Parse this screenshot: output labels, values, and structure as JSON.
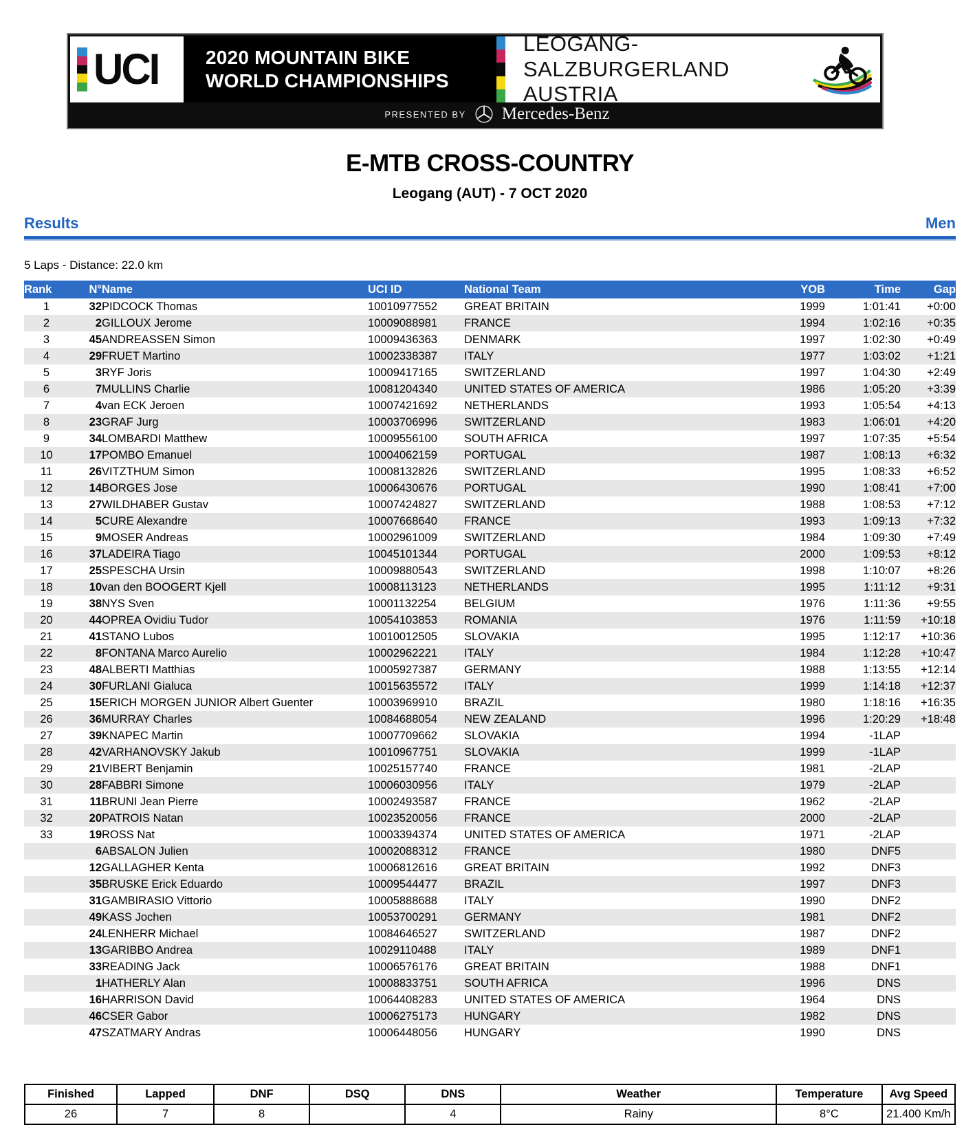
{
  "banner": {
    "uci_logo_text": "UCI",
    "event_line1": "2020 MOUNTAIN BIKE",
    "event_line2": "WORLD CHAMPIONSHIPS",
    "location_line1": "LEOGANG-SALZBURGERLAND",
    "location_line2": "AUSTRIA",
    "presented_by": "PRESENTED BY",
    "sponsor": "Mercedes-Benz"
  },
  "title": "E-MTB CROSS-COUNTRY",
  "subtitle": "Leogang (AUT) - 7 OCT 2020",
  "section_left": "Results",
  "section_right": "Men",
  "race_info": "5 Laps - Distance: 22.0 km",
  "colors": {
    "accent_blue": "#2e6dc5",
    "row_alt_gray": "#e7e7e7",
    "banner_black": "#000000",
    "rainbow": [
      "#2e89cf",
      "#c6265c",
      "#0a0a0a",
      "#f4d814",
      "#3aa648"
    ]
  },
  "results_table": {
    "columns": [
      "Rank",
      "N°",
      "Name",
      "UCI ID",
      "National Team",
      "YOB",
      "Time",
      "Gap"
    ],
    "rows": [
      [
        "1",
        "32",
        "PIDCOCK Thomas",
        "10010977552",
        "GREAT BRITAIN",
        "1999",
        "1:01:41",
        "+0:00"
      ],
      [
        "2",
        "2",
        "GILLOUX Jerome",
        "10009088981",
        "FRANCE",
        "1994",
        "1:02:16",
        "+0:35"
      ],
      [
        "3",
        "45",
        "ANDREASSEN Simon",
        "10009436363",
        "DENMARK",
        "1997",
        "1:02:30",
        "+0:49"
      ],
      [
        "4",
        "29",
        "FRUET Martino",
        "10002338387",
        "ITALY",
        "1977",
        "1:03:02",
        "+1:21"
      ],
      [
        "5",
        "3",
        "RYF Joris",
        "10009417165",
        "SWITZERLAND",
        "1997",
        "1:04:30",
        "+2:49"
      ],
      [
        "6",
        "7",
        "MULLINS Charlie",
        "10081204340",
        "UNITED STATES OF AMERICA",
        "1986",
        "1:05:20",
        "+3:39"
      ],
      [
        "7",
        "4",
        "van ECK Jeroen",
        "10007421692",
        "NETHERLANDS",
        "1993",
        "1:05:54",
        "+4:13"
      ],
      [
        "8",
        "23",
        "GRAF Jurg",
        "10003706996",
        "SWITZERLAND",
        "1983",
        "1:06:01",
        "+4:20"
      ],
      [
        "9",
        "34",
        "LOMBARDI Matthew",
        "10009556100",
        "SOUTH AFRICA",
        "1997",
        "1:07:35",
        "+5:54"
      ],
      [
        "10",
        "17",
        "POMBO Emanuel",
        "10004062159",
        "PORTUGAL",
        "1987",
        "1:08:13",
        "+6:32"
      ],
      [
        "11",
        "26",
        "VITZTHUM Simon",
        "10008132826",
        "SWITZERLAND",
        "1995",
        "1:08:33",
        "+6:52"
      ],
      [
        "12",
        "14",
        "BORGES Jose",
        "10006430676",
        "PORTUGAL",
        "1990",
        "1:08:41",
        "+7:00"
      ],
      [
        "13",
        "27",
        "WILDHABER Gustav",
        "10007424827",
        "SWITZERLAND",
        "1988",
        "1:08:53",
        "+7:12"
      ],
      [
        "14",
        "5",
        "CURE Alexandre",
        "10007668640",
        "FRANCE",
        "1993",
        "1:09:13",
        "+7:32"
      ],
      [
        "15",
        "9",
        "MOSER Andreas",
        "10002961009",
        "SWITZERLAND",
        "1984",
        "1:09:30",
        "+7:49"
      ],
      [
        "16",
        "37",
        "LADEIRA Tiago",
        "10045101344",
        "PORTUGAL",
        "2000",
        "1:09:53",
        "+8:12"
      ],
      [
        "17",
        "25",
        "SPESCHA Ursin",
        "10009880543",
        "SWITZERLAND",
        "1998",
        "1:10:07",
        "+8:26"
      ],
      [
        "18",
        "10",
        "van den BOOGERT Kjell",
        "10008113123",
        "NETHERLANDS",
        "1995",
        "1:11:12",
        "+9:31"
      ],
      [
        "19",
        "38",
        "NYS Sven",
        "10001132254",
        "BELGIUM",
        "1976",
        "1:11:36",
        "+9:55"
      ],
      [
        "20",
        "44",
        "OPREA Ovidiu Tudor",
        "10054103853",
        "ROMANIA",
        "1976",
        "1:11:59",
        "+10:18"
      ],
      [
        "21",
        "41",
        "STANO Lubos",
        "10010012505",
        "SLOVAKIA",
        "1995",
        "1:12:17",
        "+10:36"
      ],
      [
        "22",
        "8",
        "FONTANA Marco Aurelio",
        "10002962221",
        "ITALY",
        "1984",
        "1:12:28",
        "+10:47"
      ],
      [
        "23",
        "48",
        "ALBERTI Matthias",
        "10005927387",
        "GERMANY",
        "1988",
        "1:13:55",
        "+12:14"
      ],
      [
        "24",
        "30",
        "FURLANI Gialuca",
        "10015635572",
        "ITALY",
        "1999",
        "1:14:18",
        "+12:37"
      ],
      [
        "25",
        "15",
        "ERICH MORGEN JUNIOR Albert Guenter",
        "10003969910",
        "BRAZIL",
        "1980",
        "1:18:16",
        "+16:35"
      ],
      [
        "26",
        "36",
        "MURRAY Charles",
        "10084688054",
        "NEW ZEALAND",
        "1996",
        "1:20:29",
        "+18:48"
      ],
      [
        "27",
        "39",
        "KNAPEC Martin",
        "10007709662",
        "SLOVAKIA",
        "1994",
        "-1LAP",
        ""
      ],
      [
        "28",
        "42",
        "VARHANOVSKY Jakub",
        "10010967751",
        "SLOVAKIA",
        "1999",
        "-1LAP",
        ""
      ],
      [
        "29",
        "21",
        "VIBERT Benjamin",
        "10025157740",
        "FRANCE",
        "1981",
        "-2LAP",
        ""
      ],
      [
        "30",
        "28",
        "FABBRI Simone",
        "10006030956",
        "ITALY",
        "1979",
        "-2LAP",
        ""
      ],
      [
        "31",
        "11",
        "BRUNI Jean Pierre",
        "10002493587",
        "FRANCE",
        "1962",
        "-2LAP",
        ""
      ],
      [
        "32",
        "20",
        "PATROIS Natan",
        "10023520056",
        "FRANCE",
        "2000",
        "-2LAP",
        ""
      ],
      [
        "33",
        "19",
        "ROSS Nat",
        "10003394374",
        "UNITED STATES OF AMERICA",
        "1971",
        "-2LAP",
        ""
      ],
      [
        "",
        "6",
        "ABSALON Julien",
        "10002088312",
        "FRANCE",
        "1980",
        "DNF5",
        ""
      ],
      [
        "",
        "12",
        "GALLAGHER Kenta",
        "10006812616",
        "GREAT BRITAIN",
        "1992",
        "DNF3",
        ""
      ],
      [
        "",
        "35",
        "BRUSKE Erick Eduardo",
        "10009544477",
        "BRAZIL",
        "1997",
        "DNF3",
        ""
      ],
      [
        "",
        "31",
        "GAMBIRASIO Vittorio",
        "10005888688",
        "ITALY",
        "1990",
        "DNF2",
        ""
      ],
      [
        "",
        "49",
        "KASS Jochen",
        "10053700291",
        "GERMANY",
        "1981",
        "DNF2",
        ""
      ],
      [
        "",
        "24",
        "LENHERR Michael",
        "10084646527",
        "SWITZERLAND",
        "1987",
        "DNF2",
        ""
      ],
      [
        "",
        "13",
        "GARIBBO Andrea",
        "10029110488",
        "ITALY",
        "1989",
        "DNF1",
        ""
      ],
      [
        "",
        "33",
        "READING Jack",
        "10006576176",
        "GREAT BRITAIN",
        "1988",
        "DNF1",
        ""
      ],
      [
        "",
        "1",
        "HATHERLY Alan",
        "10008833751",
        "SOUTH AFRICA",
        "1996",
        "DNS",
        ""
      ],
      [
        "",
        "16",
        "HARRISON David",
        "10064408283",
        "UNITED STATES OF AMERICA",
        "1964",
        "DNS",
        ""
      ],
      [
        "",
        "46",
        "CSER Gabor",
        "10006275173",
        "HUNGARY",
        "1982",
        "DNS",
        ""
      ],
      [
        "",
        "47",
        "SZATMARY Andras",
        "10006448056",
        "HUNGARY",
        "1990",
        "DNS",
        ""
      ]
    ]
  },
  "summary_table": {
    "columns": [
      "Finished",
      "Lapped",
      "DNF",
      "DSQ",
      "DNS",
      "Weather",
      "Temperature",
      "Avg Speed"
    ],
    "values": [
      "26",
      "7",
      "8",
      "",
      "4",
      "Rainy",
      "8°C",
      "21.400 Km/h"
    ]
  }
}
